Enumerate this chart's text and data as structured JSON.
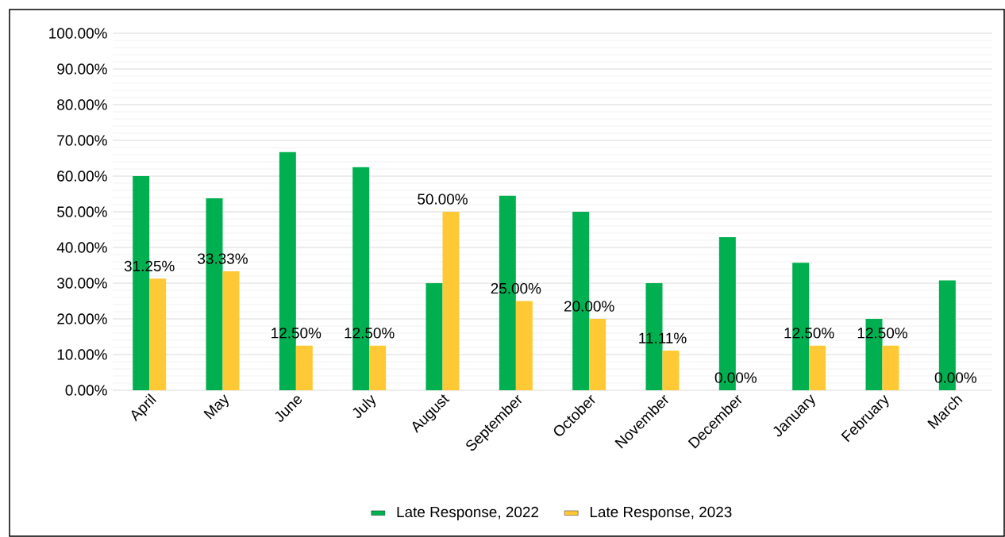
{
  "chart_data": {
    "type": "bar",
    "categories": [
      "April",
      "May",
      "June",
      "July",
      "August",
      "September",
      "October",
      "November",
      "December",
      "January",
      "February",
      "March"
    ],
    "series": [
      {
        "name": "Late Response, 2022",
        "color": "#00b050",
        "values": [
          60,
          53.8,
          66.7,
          62.5,
          30,
          54.5,
          50,
          30,
          42.9,
          35.7,
          20,
          30.8
        ]
      },
      {
        "name": "Late Response, 2023",
        "color": "#ffc936",
        "values": [
          31.25,
          33.33,
          12.5,
          12.5,
          50,
          25,
          20,
          11.11,
          0,
          12.5,
          12.5,
          0
        ],
        "value_labels": [
          "31.25%",
          "33.33%",
          "12.50%",
          "12.50%",
          "50.00%",
          "25.00%",
          "20.00%",
          "11.11%",
          "0.00%",
          "12.50%",
          "12.50%",
          "0.00%"
        ]
      }
    ],
    "ylim": [
      0,
      100
    ],
    "yticks": [
      {
        "value": 0,
        "label": "0.00%"
      },
      {
        "value": 10,
        "label": "10.00%"
      },
      {
        "value": 20,
        "label": "20.00%"
      },
      {
        "value": 30,
        "label": "30.00%"
      },
      {
        "value": 40,
        "label": "40.00%"
      },
      {
        "value": 50,
        "label": "50.00%"
      },
      {
        "value": 60,
        "label": "60.00%"
      },
      {
        "value": 70,
        "label": "70.00%"
      },
      {
        "value": 80,
        "label": "80.00%"
      },
      {
        "value": 90,
        "label": "90.00%"
      },
      {
        "value": 100,
        "label": "100.00%"
      }
    ],
    "grid": "y",
    "legend": "bottom"
  }
}
